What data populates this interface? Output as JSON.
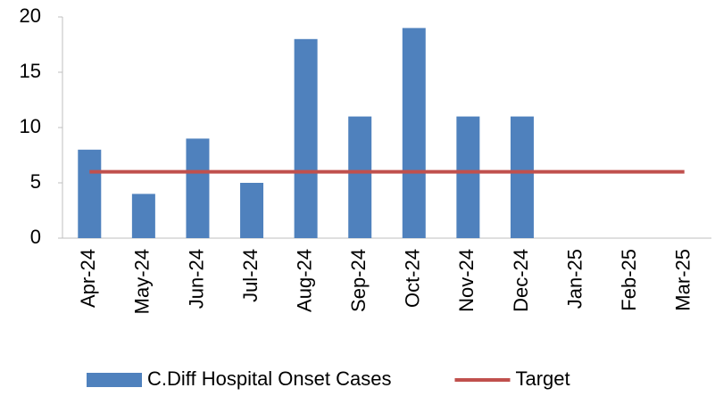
{
  "chart_data": {
    "type": "bar",
    "categories": [
      "Apr-24",
      "May-24",
      "Jun-24",
      "Jul-24",
      "Aug-24",
      "Sep-24",
      "Oct-24",
      "Nov-24",
      "Dec-24",
      "Jan-25",
      "Feb-25",
      "Mar-25"
    ],
    "series": [
      {
        "name": "C.Diff Hospital Onset Cases",
        "type": "bar",
        "color": "#4f81bd",
        "values": [
          8,
          4,
          9,
          5,
          18,
          11,
          19,
          11,
          11,
          null,
          null,
          null
        ]
      },
      {
        "name": "Target",
        "type": "line",
        "color": "#c0504d",
        "values": [
          6,
          6,
          6,
          6,
          6,
          6,
          6,
          6,
          6,
          6,
          6,
          6
        ]
      }
    ],
    "ylim": [
      0,
      20
    ],
    "yticks": [
      0,
      5,
      10,
      15,
      20
    ],
    "grid": false,
    "legend": "bottom"
  }
}
